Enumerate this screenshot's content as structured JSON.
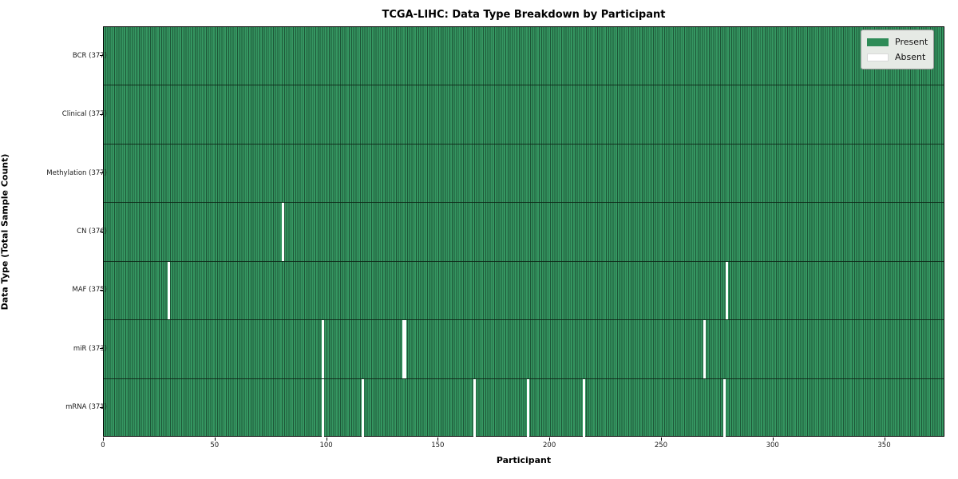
{
  "title": "TCGA-LIHC: Data Type Breakdown by Participant",
  "legend": {
    "present_label": "Present",
    "absent_label": "Absent"
  },
  "chart_data": {
    "type": "heatmap",
    "title": "TCGA-LIHC: Data Type Breakdown by Participant",
    "xlabel": "Participant",
    "ylabel": "Data Type (Total Sample Count)",
    "x_ticks": [
      0,
      50,
      100,
      150,
      200,
      250,
      300,
      350
    ],
    "xlim": [
      0,
      377
    ],
    "n_participants": 377,
    "grid": false,
    "legend_position": "upper-right",
    "legend_entries": [
      {
        "label": "Present",
        "color": "#2e8b57"
      },
      {
        "label": "Absent",
        "color": "#ffffff"
      }
    ],
    "rows": [
      {
        "label": "BCR (377)",
        "data_type": "BCR",
        "total": 377,
        "absent_participants": []
      },
      {
        "label": "Clinical (377)",
        "data_type": "Clinical",
        "total": 377,
        "absent_participants": []
      },
      {
        "label": "Methylation (377)",
        "data_type": "Methylation",
        "total": 377,
        "absent_participants": []
      },
      {
        "label": "CN (376)",
        "data_type": "CN",
        "total": 376,
        "absent_participants": [
          80
        ]
      },
      {
        "label": "MAF (375)",
        "data_type": "MAF",
        "total": 375,
        "absent_participants": [
          29,
          279
        ]
      },
      {
        "label": "miR (373)",
        "data_type": "miR",
        "total": 373,
        "absent_participants": [
          98,
          134,
          135,
          269
        ]
      },
      {
        "label": "mRNA (371)",
        "data_type": "mRNA",
        "total": 371,
        "absent_participants": [
          98,
          116,
          166,
          190,
          215,
          278
        ]
      }
    ],
    "colors": {
      "present": "#2e8b57",
      "present_stripe_dark": "#1d5637",
      "absent": "#ffffff",
      "row_separator": "#14281a",
      "axis": "#000000"
    }
  }
}
